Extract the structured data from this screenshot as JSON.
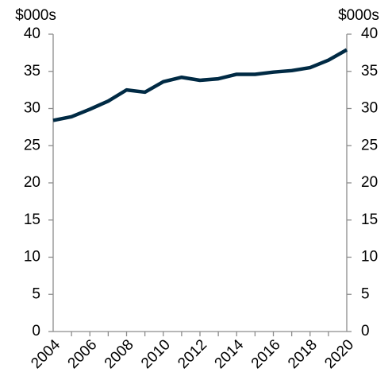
{
  "chart_data": {
    "type": "line",
    "y_label": "$000s",
    "y2_label": "$000s",
    "categories": [
      "2004",
      null,
      "2006",
      null,
      "2008",
      null,
      "2010",
      null,
      "2012",
      null,
      "2014",
      null,
      "2016",
      null,
      "2018",
      null,
      "2020"
    ],
    "values": [
      28.4,
      28.9,
      29.9,
      31.0,
      32.5,
      32.2,
      33.6,
      34.2,
      33.8,
      34.0,
      34.6,
      34.6,
      34.9,
      35.1,
      35.5,
      36.5,
      37.9
    ],
    "color": "#002a44",
    "ylim": [
      0,
      40
    ],
    "yticks": [
      0,
      5,
      10,
      15,
      20,
      25,
      30,
      35,
      40
    ],
    "y2lim": [
      0,
      40
    ],
    "y2ticks": [
      0,
      5,
      10,
      15,
      20,
      25,
      30,
      35,
      40
    ]
  }
}
